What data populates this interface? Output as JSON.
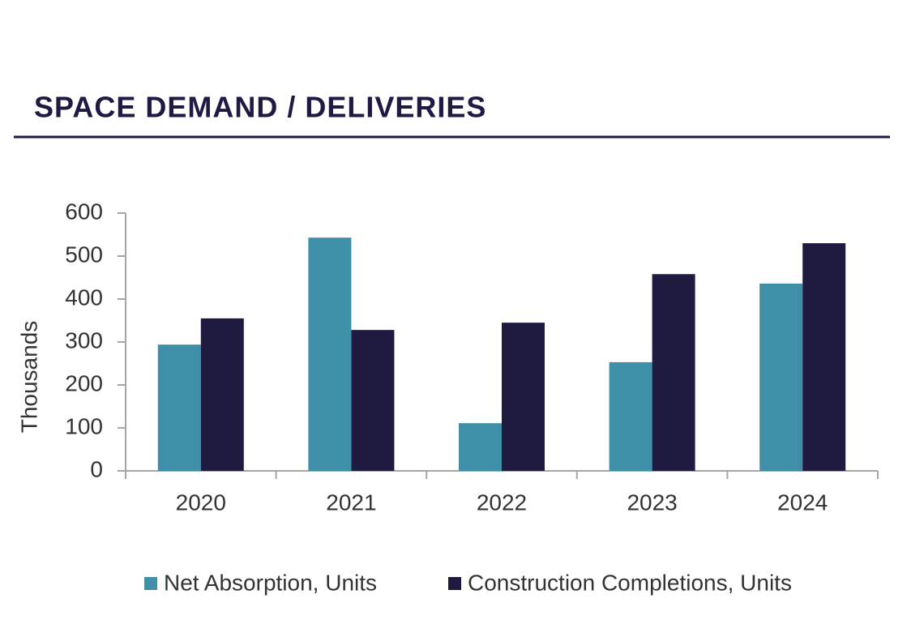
{
  "chart_data": {
    "type": "bar",
    "title": "SPACE DEMAND / DELIVERIES",
    "y_label": "Thousands",
    "categories": [
      "2020",
      "2021",
      "2022",
      "2023",
      "2024"
    ],
    "series": [
      {
        "name": "Net Absorption, Units",
        "color": "#3f8fa8",
        "values": [
          294,
          543,
          111,
          253,
          436
        ]
      },
      {
        "name": "Construction Completions, Units",
        "color": "#1e1a40",
        "values": [
          355,
          328,
          345,
          458,
          530
        ]
      }
    ],
    "ylim": [
      0,
      600
    ],
    "yticks": [
      0,
      100,
      200,
      300,
      400,
      500,
      600
    ],
    "legend": "bottom"
  }
}
